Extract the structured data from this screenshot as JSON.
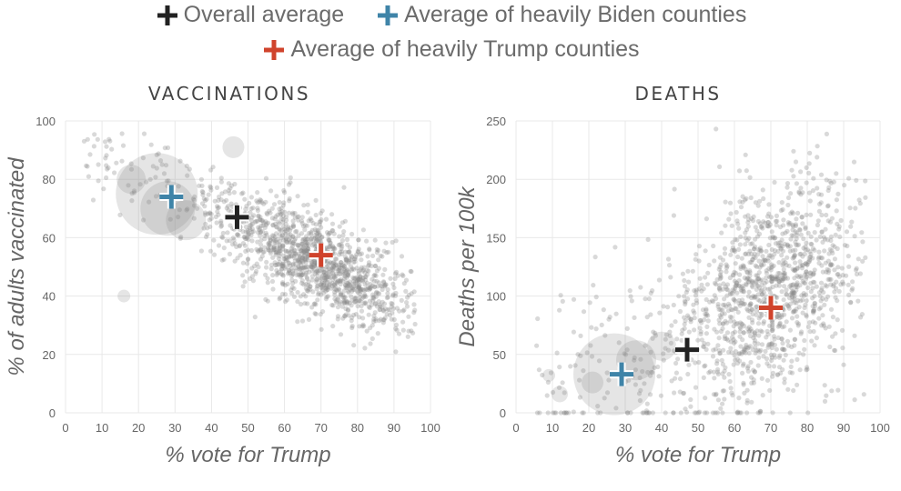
{
  "legend": {
    "overall": {
      "label": "Overall average",
      "color": "#222222"
    },
    "biden": {
      "label": "Average of heavily Biden counties",
      "color": "#3f84a8"
    },
    "trump": {
      "label": "Average of heavily Trump counties",
      "color": "#d0432c"
    }
  },
  "chart_data": [
    {
      "type": "scatter",
      "title": "VACCINATIONS",
      "xlabel": "% vote for Trump",
      "ylabel": "% of adults vaccinated",
      "xlim": [
        0,
        100
      ],
      "ylim": [
        0,
        100
      ],
      "x_ticks": [
        "0",
        "10",
        "20",
        "30",
        "40",
        "50",
        "60",
        "70",
        "80",
        "90",
        "100"
      ],
      "y_ticks": [
        "0",
        "20",
        "40",
        "60",
        "80",
        "100"
      ],
      "point_color": "#8a8a8a",
      "cloud": {
        "slope": -0.62,
        "intercept": 94,
        "x_center": 70,
        "x_spread": 13,
        "y_noise": 8,
        "count": 1400
      },
      "highlighted_bubbles": [
        {
          "x": 25,
          "y": 75,
          "size": 45
        },
        {
          "x": 28,
          "y": 70,
          "size": 30
        },
        {
          "x": 33,
          "y": 66,
          "size": 22
        },
        {
          "x": 18,
          "y": 80,
          "size": 16
        },
        {
          "x": 16,
          "y": 40,
          "size": 7
        },
        {
          "x": 46,
          "y": 91,
          "size": 12
        }
      ],
      "markers": [
        {
          "key": "overall",
          "x": 47,
          "y": 67
        },
        {
          "key": "biden",
          "x": 29,
          "y": 74
        },
        {
          "key": "trump",
          "x": 70,
          "y": 54
        }
      ]
    },
    {
      "type": "scatter",
      "title": "DEATHS",
      "xlabel": "% vote for Trump",
      "ylabel": "Deaths per 100k",
      "xlim": [
        0,
        100
      ],
      "ylim": [
        0,
        250
      ],
      "x_ticks": [
        "0",
        "10",
        "20",
        "30",
        "40",
        "50",
        "60",
        "70",
        "80",
        "90",
        "100"
      ],
      "y_ticks": [
        "0",
        "50",
        "100",
        "150",
        "200",
        "250"
      ],
      "point_color": "#8a8a8a",
      "cloud": {
        "slope": 1.55,
        "intercept": -5,
        "x_center": 70,
        "x_spread": 13,
        "y_noise": 45,
        "count": 1400
      },
      "highlighted_bubbles": [
        {
          "x": 27,
          "y": 33,
          "size": 45
        },
        {
          "x": 33,
          "y": 45,
          "size": 22
        },
        {
          "x": 40,
          "y": 57,
          "size": 16
        },
        {
          "x": 21,
          "y": 26,
          "size": 12
        },
        {
          "x": 9,
          "y": 32,
          "size": 7
        },
        {
          "x": 12,
          "y": 16,
          "size": 9
        }
      ],
      "markers": [
        {
          "key": "overall",
          "x": 47,
          "y": 54
        },
        {
          "key": "biden",
          "x": 29,
          "y": 33
        },
        {
          "key": "trump",
          "x": 70,
          "y": 90
        }
      ]
    }
  ]
}
